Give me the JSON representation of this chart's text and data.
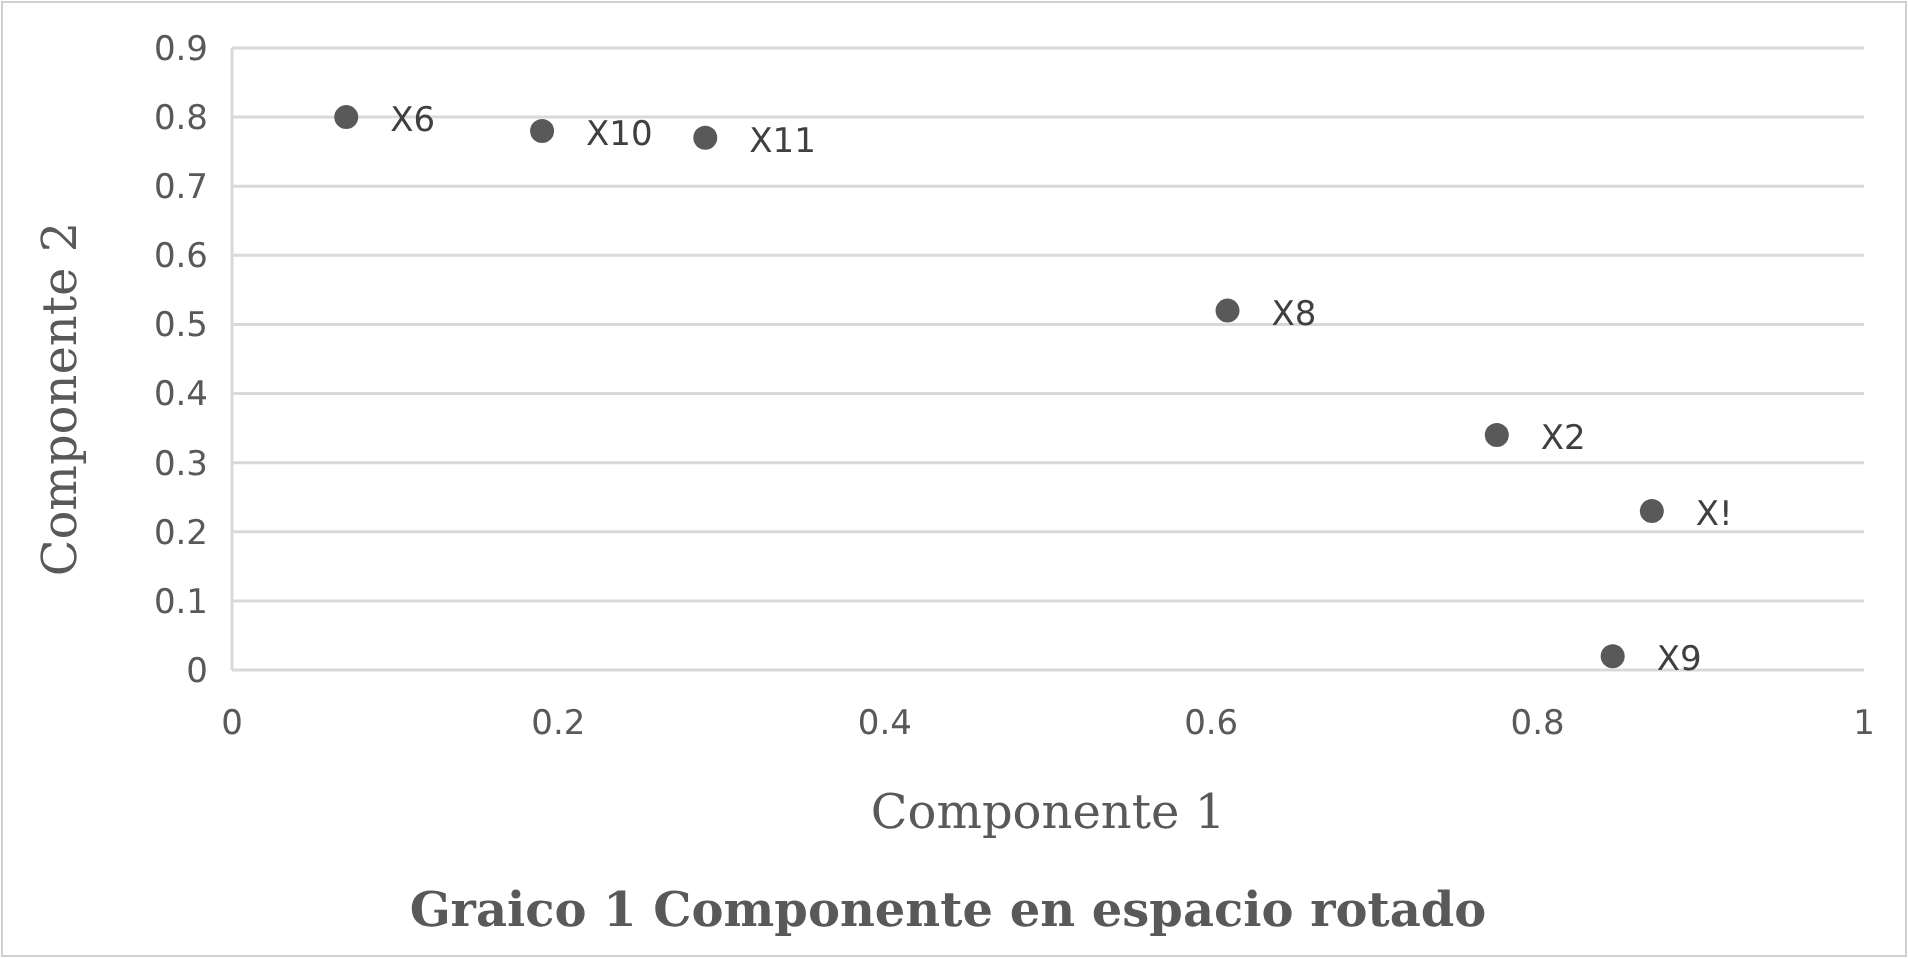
{
  "chart_data": {
    "type": "scatter",
    "title": "Graico 1  Componente en espacio rotado",
    "xlabel": "Componente 1",
    "ylabel": "Componente 2",
    "x": [
      0.07,
      0.19,
      0.29,
      0.61,
      0.775,
      0.87,
      0.846
    ],
    "values": [
      0.8,
      0.78,
      0.77,
      0.52,
      0.34,
      0.23,
      0.02
    ],
    "color": "#595959",
    "marker": "circle",
    "grid": "y",
    "xlim": [
      0,
      1
    ],
    "xticks": [
      0,
      0.2,
      0.4,
      0.6,
      0.8,
      1
    ],
    "ylim": [
      0,
      0.9
    ],
    "yticks": [
      0,
      0.1,
      0.2,
      0.3,
      0.4,
      0.5,
      0.6,
      0.7,
      0.8,
      0.9
    ],
    "annotations": [
      {
        "text": "X6",
        "x": 0.07,
        "y": 0.8
      },
      {
        "text": "X10",
        "x": 0.19,
        "y": 0.78
      },
      {
        "text": "X11",
        "x": 0.29,
        "y": 0.77
      },
      {
        "text": "X8",
        "x": 0.61,
        "y": 0.52
      },
      {
        "text": "X2",
        "x": 0.775,
        "y": 0.34
      },
      {
        "text": "X!",
        "x": 0.87,
        "y": 0.23
      },
      {
        "text": "X9",
        "x": 0.846,
        "y": 0.02
      }
    ]
  }
}
